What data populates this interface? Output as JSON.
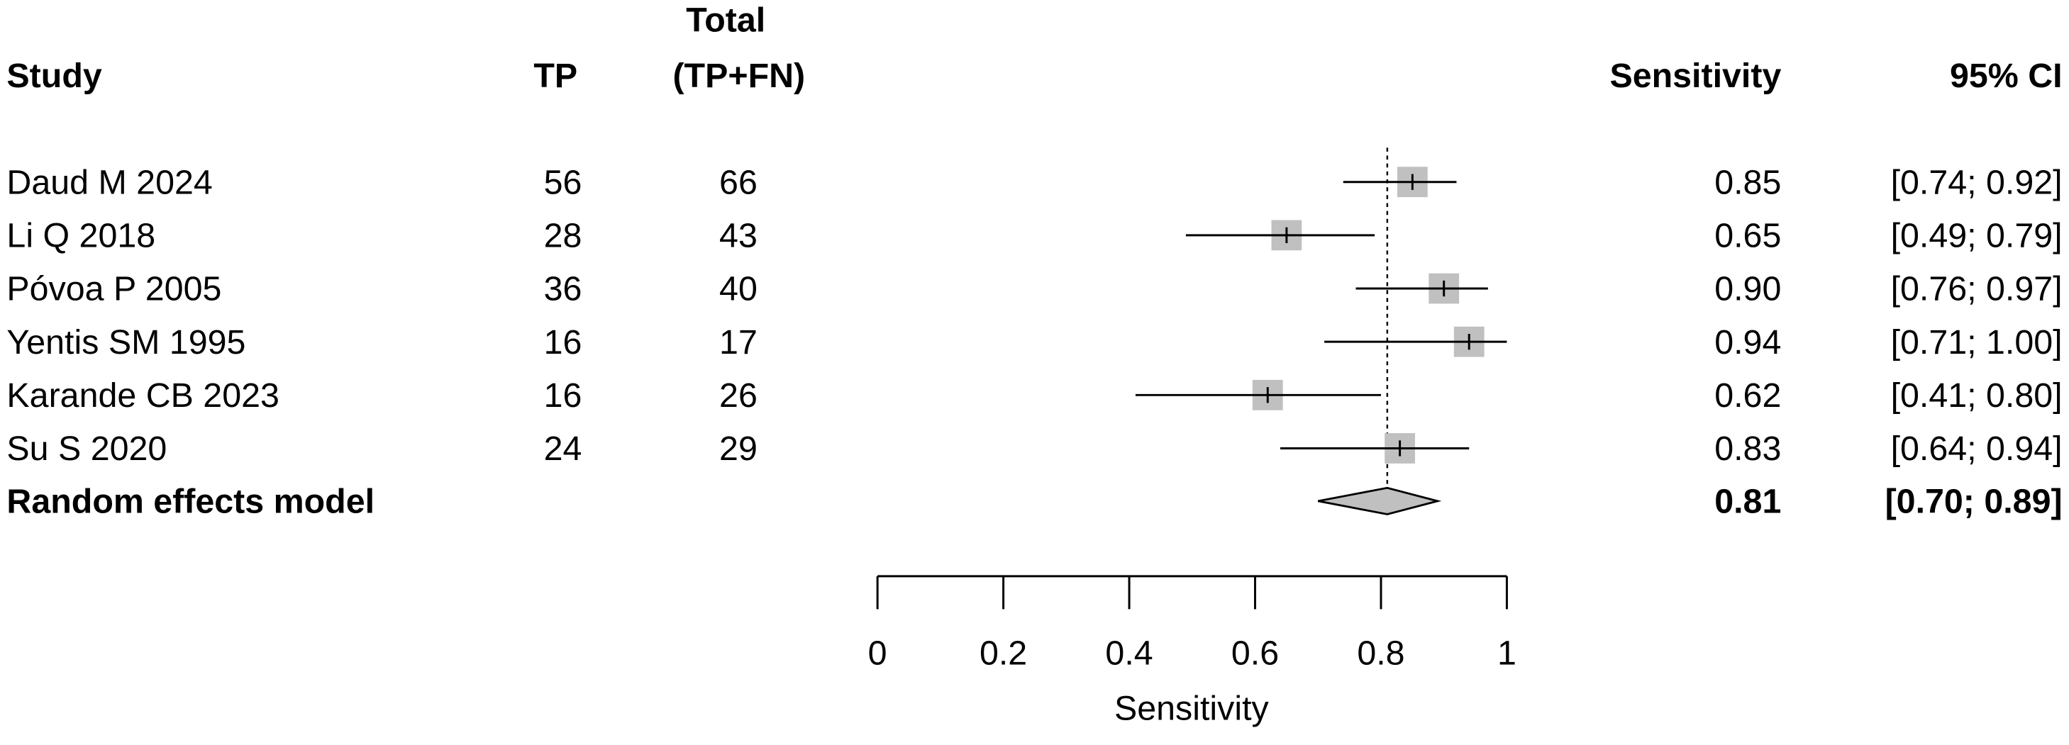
{
  "chart_data": {
    "type": "forest",
    "headers": {
      "study": "Study",
      "tp": "TP",
      "total_line1": "Total",
      "total_line2": "(TP+FN)",
      "sensitivity": "Sensitivity",
      "ci": "95% CI"
    },
    "studies": [
      {
        "study": "Daud M 2024",
        "tp": "56",
        "total": "66",
        "sens": 0.85,
        "lo": 0.74,
        "hi": 0.92,
        "sens_label": "0.85",
        "ci_label": "[0.74; 0.92]"
      },
      {
        "study": "Li Q 2018",
        "tp": "28",
        "total": "43",
        "sens": 0.65,
        "lo": 0.49,
        "hi": 0.79,
        "sens_label": "0.65",
        "ci_label": "[0.49; 0.79]"
      },
      {
        "study": "Póvoa P 2005",
        "tp": "36",
        "total": "40",
        "sens": 0.9,
        "lo": 0.76,
        "hi": 0.97,
        "sens_label": "0.90",
        "ci_label": "[0.76; 0.97]"
      },
      {
        "study": "Yentis SM 1995",
        "tp": "16",
        "total": "17",
        "sens": 0.94,
        "lo": 0.71,
        "hi": 1.0,
        "sens_label": "0.94",
        "ci_label": "[0.71; 1.00]"
      },
      {
        "study": "Karande CB 2023",
        "tp": "16",
        "total": "26",
        "sens": 0.62,
        "lo": 0.41,
        "hi": 0.8,
        "sens_label": "0.62",
        "ci_label": "[0.41; 0.80]"
      },
      {
        "study": "Su S 2020",
        "tp": "24",
        "total": "29",
        "sens": 0.83,
        "lo": 0.64,
        "hi": 0.94,
        "sens_label": "0.83",
        "ci_label": "[0.64; 0.94]"
      }
    ],
    "pooled": {
      "label": "Random effects model",
      "sens": 0.81,
      "lo": 0.7,
      "hi": 0.89,
      "sens_label": "0.81",
      "ci_label": "[0.70; 0.89]"
    },
    "xlim": [
      0,
      1
    ],
    "xticks": [
      "0",
      "0.2",
      "0.4",
      "0.6",
      "0.8",
      "1"
    ],
    "xtick_values": [
      0,
      0.2,
      0.4,
      0.6,
      0.8,
      1
    ],
    "xlabel": "Sensitivity",
    "reference_line": 0.81,
    "grid": false,
    "colors": {
      "square": "#c0c0c0",
      "diamond": "#c0c0c0",
      "line": "#000000"
    }
  }
}
